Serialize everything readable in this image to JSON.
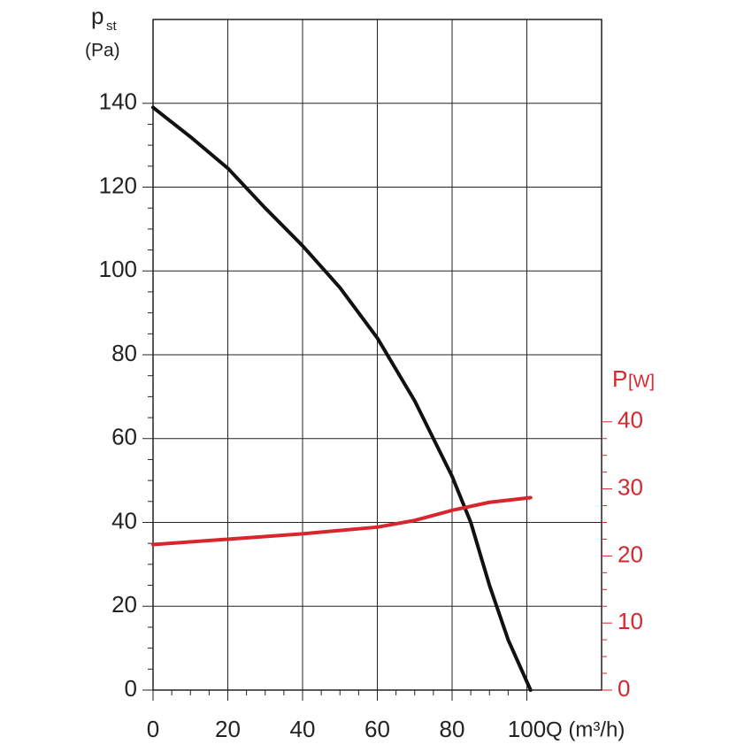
{
  "chart_data": {
    "type": "line",
    "y_label": "p",
    "y_label_subscript": "st",
    "y_unit": "(Pa)",
    "y2_label": "P",
    "y2_unit": "[W]",
    "x_label": "Q (m³/h)",
    "xlim": [
      0,
      120
    ],
    "xticks": [
      0,
      20,
      40,
      60,
      80,
      100
    ],
    "ylim": [
      0,
      160
    ],
    "yticks": [
      0,
      20,
      40,
      60,
      80,
      100,
      120,
      140
    ],
    "y2lim": [
      0,
      100
    ],
    "y2ticks": [
      0,
      10,
      20,
      30,
      40
    ],
    "grid": true,
    "series": [
      {
        "color": "#111111",
        "x": [
          0,
          10,
          20,
          30,
          40,
          50,
          60,
          70,
          80,
          85,
          90,
          95,
          101
        ],
        "values": [
          139,
          132,
          124.5,
          115,
          106,
          96,
          84,
          69,
          51,
          40,
          25,
          12,
          0
        ]
      },
      {
        "color": "#d7262e",
        "axis": "y2",
        "x": [
          0,
          20,
          40,
          60,
          70,
          80,
          90,
          101
        ],
        "values": [
          21.7,
          22.5,
          23.3,
          24.3,
          25.3,
          26.8,
          28,
          28.7
        ]
      }
    ]
  }
}
